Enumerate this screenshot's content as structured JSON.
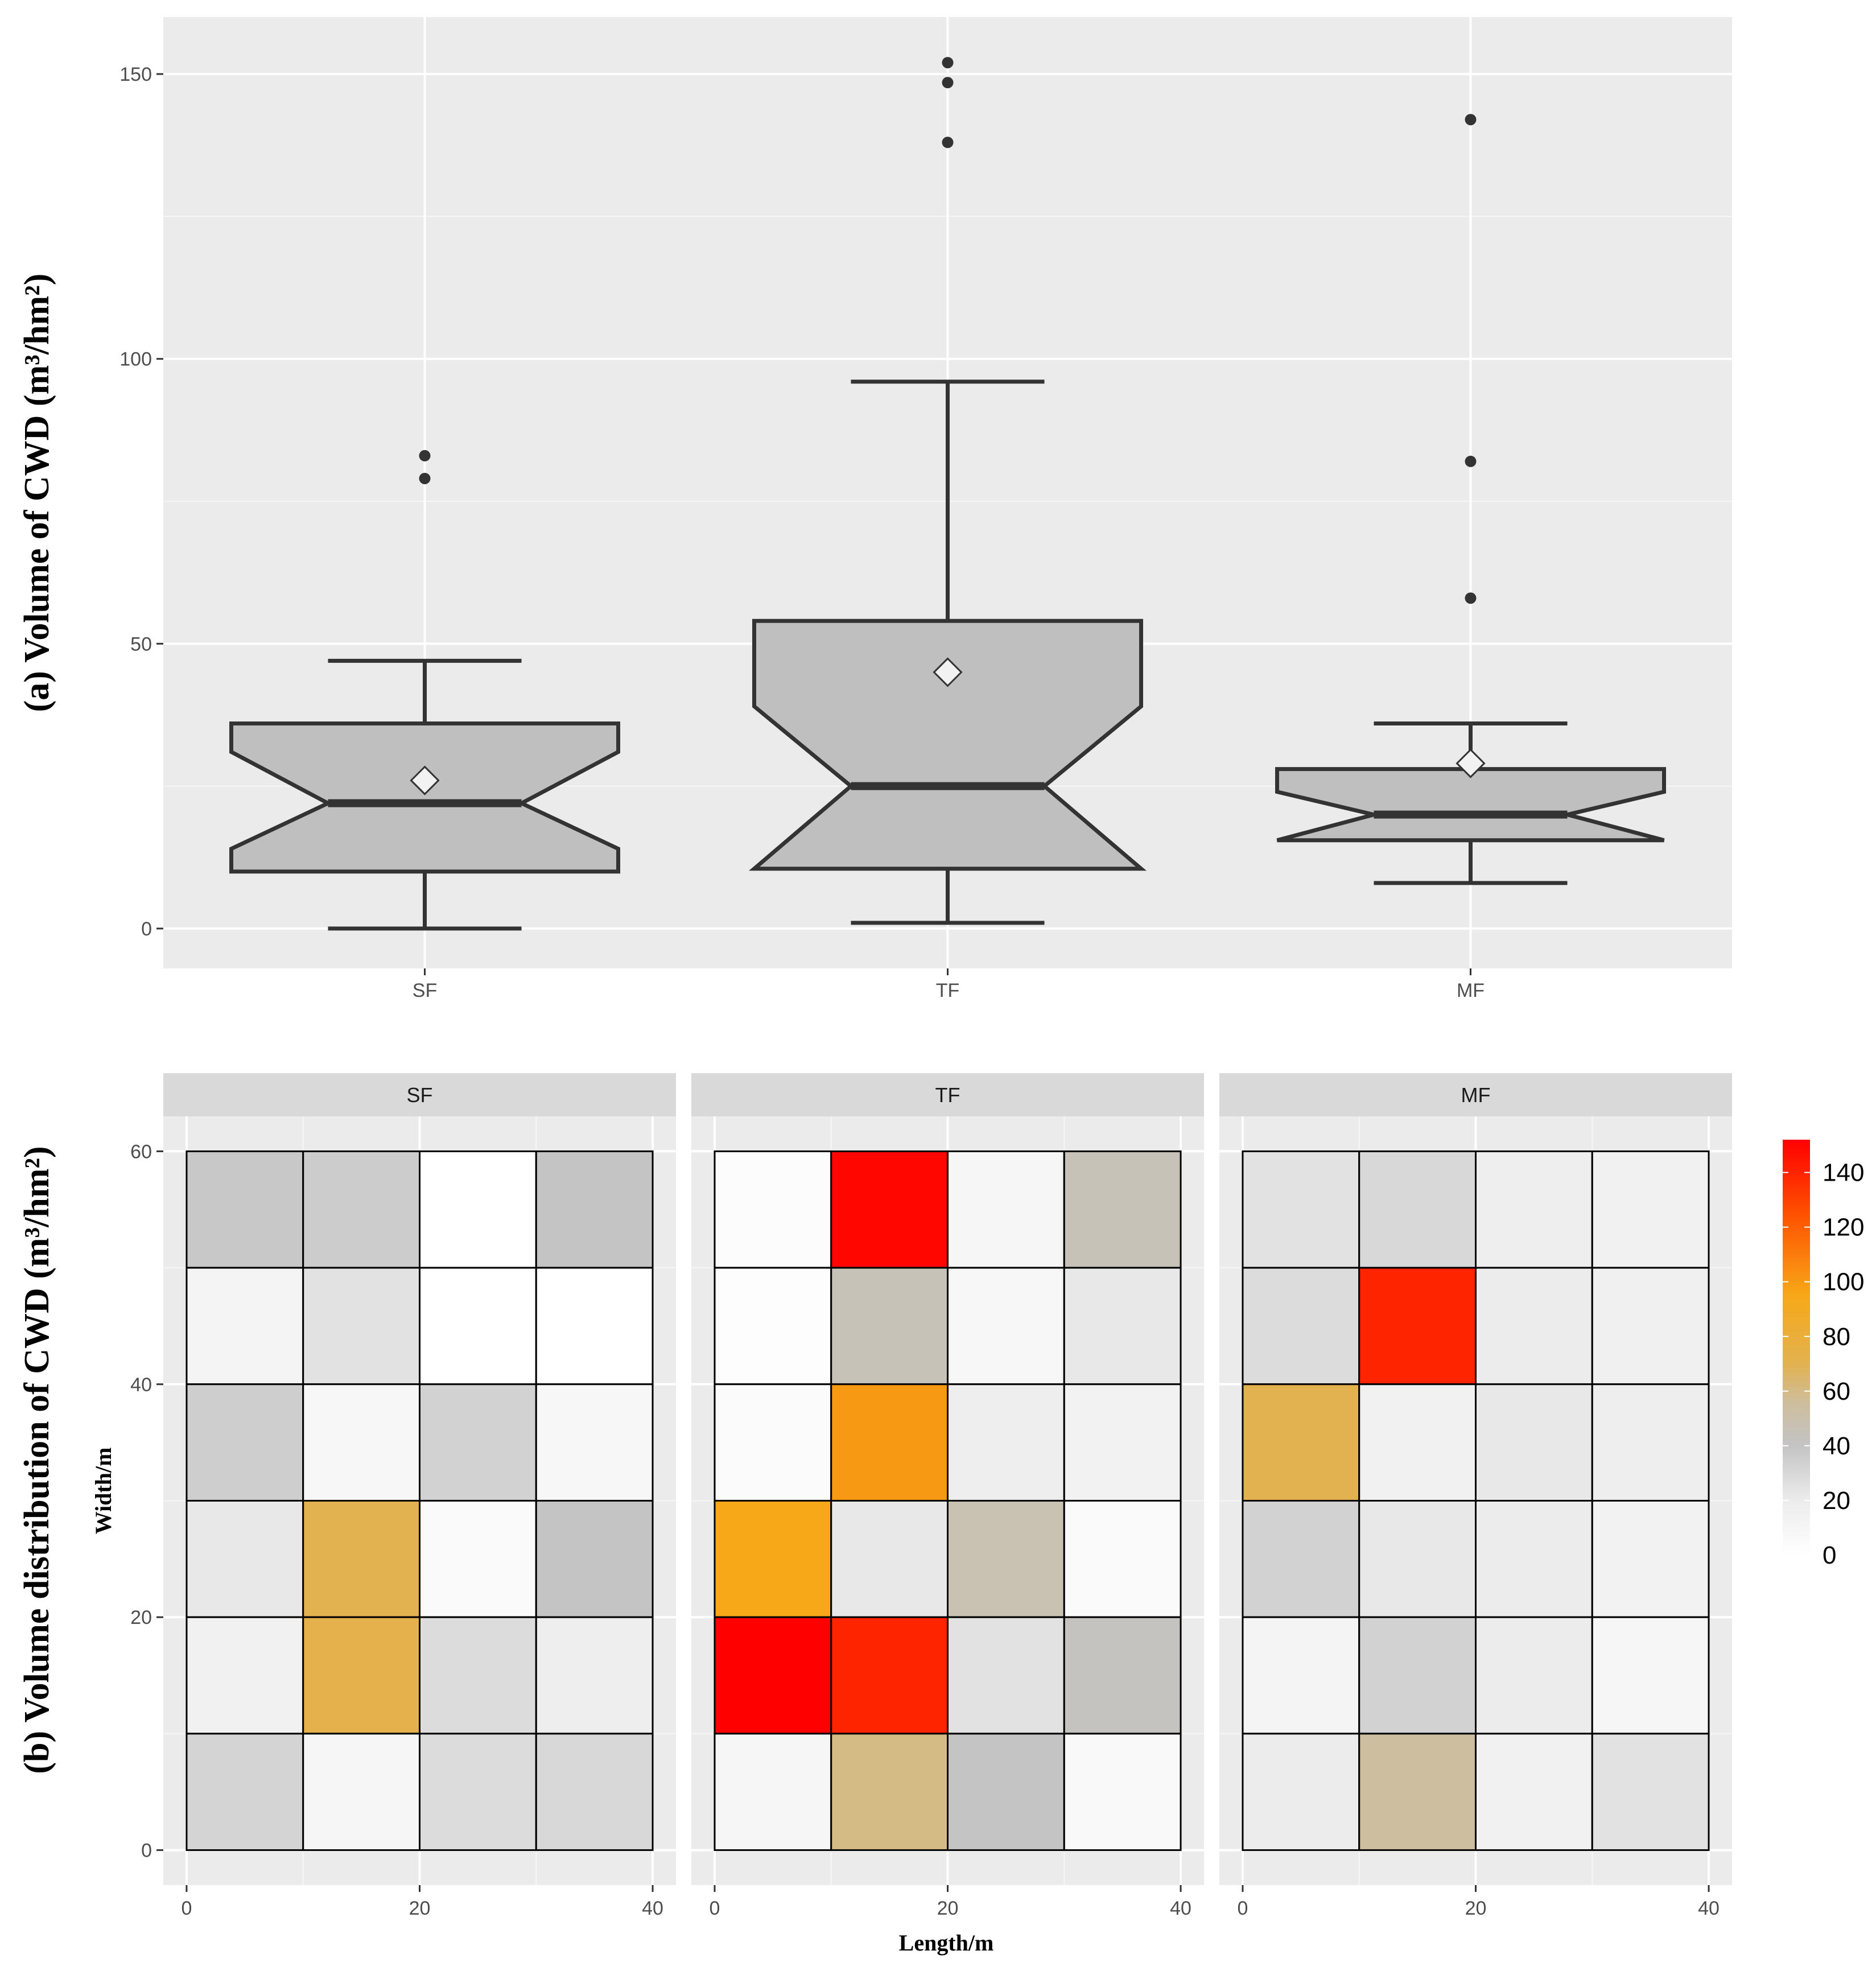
{
  "chart_data": [
    {
      "type": "box",
      "ylabel": "(a) Volume of CWD (m³/hm²)",
      "ylim": [
        -7,
        160
      ],
      "yticks": [
        0,
        50,
        100,
        150
      ],
      "notched": true,
      "grid": true,
      "categories": [
        "SF",
        "TF",
        "MF"
      ],
      "boxes": [
        {
          "name": "SF",
          "whisker_low": 0,
          "q1": 10,
          "notch_low": 14,
          "median": 22,
          "notch_high": 31,
          "q3": 36,
          "whisker_high": 47,
          "mean": 26,
          "outliers": [
            79,
            83
          ]
        },
        {
          "name": "TF",
          "whisker_low": 1,
          "q1": 10.5,
          "notch_low": 10.5,
          "median": 25,
          "notch_high": 39,
          "q3": 54,
          "whisker_high": 96,
          "mean": 45,
          "outliers": [
            138,
            148.5,
            152
          ]
        },
        {
          "name": "MF",
          "whisker_low": 8,
          "q1": 15.5,
          "notch_low": 15.5,
          "median": 20,
          "notch_high": 24,
          "q3": 28,
          "whisker_high": 36,
          "mean": 29,
          "outliers": [
            58,
            82,
            142
          ]
        }
      ]
    },
    {
      "type": "heatmap",
      "ylabel": "(b) Volume distribution of CWD (m³/hm²)",
      "xlabel": "Length/m",
      "ylabel_inner": "Width/m",
      "xticks": [
        0,
        20,
        40
      ],
      "yticks": [
        0,
        20,
        40,
        60
      ],
      "xlim": [
        -2,
        42
      ],
      "ylim": [
        -3,
        63
      ],
      "cell_size": 10,
      "rows_from_top": true,
      "legend": {
        "min": 0,
        "max": 152,
        "ticks": [
          0,
          20,
          40,
          60,
          80,
          100,
          120,
          140
        ]
      },
      "panels": [
        {
          "name": "SF",
          "grid": [
            [
              38,
              36,
              0,
              40
            ],
            [
              12,
              25,
              0,
              0
            ],
            [
              35,
              8,
              33,
              8
            ],
            [
              22,
              70,
              5,
              40
            ],
            [
              15,
              72,
              28,
              18
            ],
            [
              32,
              10,
              28,
              30
            ]
          ]
        },
        {
          "name": "TF",
          "grid": [
            [
              3,
              150,
              10,
              45
            ],
            [
              2,
              45,
              8,
              22
            ],
            [
              4,
              100,
              18,
              14
            ],
            [
              95,
              22,
              48,
              5
            ],
            [
              152,
              140,
              25,
              42
            ],
            [
              10,
              60,
              40,
              6
            ]
          ]
        },
        {
          "name": "MF",
          "grid": [
            [
              25,
              30,
              18,
              15
            ],
            [
              28,
              140,
              20,
              16
            ],
            [
              70,
              15,
              22,
              18
            ],
            [
              33,
              22,
              20,
              14
            ],
            [
              12,
              33,
              20,
              9
            ],
            [
              20,
              55,
              15,
              25
            ]
          ]
        }
      ]
    }
  ]
}
